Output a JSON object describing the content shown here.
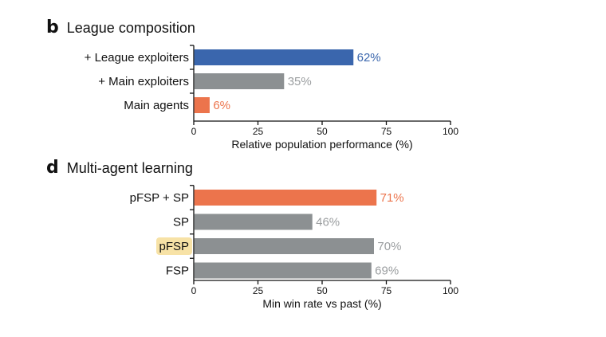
{
  "panels": [
    {
      "letter": "b",
      "title": "League composition"
    },
    {
      "letter": "d",
      "title": "Multi-agent learning"
    }
  ],
  "colors": {
    "blue": "#3a66ad",
    "orange": "#ec744c",
    "gray": "#8c9092",
    "value_gray": "#9b9ea0",
    "axis": "#111111",
    "highlight": "#f7e2a6"
  },
  "chart_data": [
    {
      "type": "bar",
      "orientation": "horizontal",
      "title": "League composition",
      "categories": [
        "+ League exploiters",
        "+ Main exploiters",
        "Main agents"
      ],
      "values": [
        62,
        35,
        6
      ],
      "value_labels": [
        "62%",
        "35%",
        "6%"
      ],
      "bar_colors": [
        "blue",
        "gray",
        "orange"
      ],
      "label_colors": [
        "blue",
        "value_gray",
        "orange"
      ],
      "highlighted": [
        false,
        false,
        false
      ],
      "xlabel": "Relative population performance (%)",
      "ylabel": "",
      "xlim": [
        0,
        100
      ],
      "xticks": [
        0,
        25,
        50,
        75,
        100
      ],
      "grid": false
    },
    {
      "type": "bar",
      "orientation": "horizontal",
      "title": "Multi-agent learning",
      "categories": [
        "pFSP + SP",
        "SP",
        "pFSP",
        "FSP"
      ],
      "values": [
        71,
        46,
        70,
        69
      ],
      "value_labels": [
        "71%",
        "46%",
        "70%",
        "69%"
      ],
      "bar_colors": [
        "orange",
        "gray",
        "gray",
        "gray"
      ],
      "label_colors": [
        "orange",
        "value_gray",
        "value_gray",
        "value_gray"
      ],
      "highlighted": [
        false,
        false,
        true,
        false
      ],
      "xlabel": "Min win rate vs past (%)",
      "ylabel": "",
      "xlim": [
        0,
        100
      ],
      "xticks": [
        0,
        25,
        50,
        75,
        100
      ],
      "grid": false
    }
  ]
}
